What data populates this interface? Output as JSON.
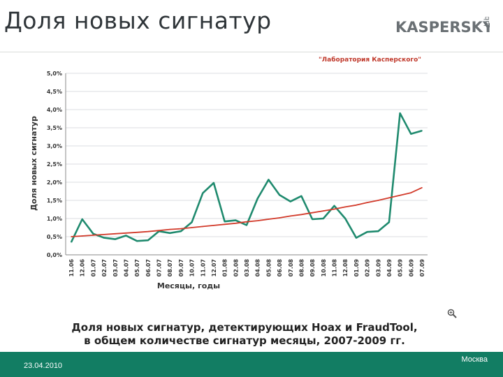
{
  "slide": {
    "title": "Доля новых сигнатур",
    "logo_text": "KASPERSKY",
    "logo_sub": "lab"
  },
  "chart_data": {
    "type": "line",
    "source_label": "\"Лаборатория Касперского\"",
    "xlabel": "Месяцы, годы",
    "ylabel": "Доля новых сигнатур",
    "ylim": [
      0,
      5
    ],
    "yticks": [
      "0,0%",
      "0,5%",
      "1,0%",
      "1,5%",
      "2,0%",
      "2,5%",
      "3,0%",
      "3,5%",
      "4,0%",
      "4,5%",
      "5,0%"
    ],
    "categories": [
      "11.06",
      "12.06",
      "01.07",
      "02.07",
      "03.07",
      "04.07",
      "05.07",
      "06.07",
      "07.07",
      "08.07",
      "09.07",
      "10.07",
      "11.07",
      "12.07",
      "01.08",
      "02.08",
      "03.08",
      "04.08",
      "05.08",
      "06.08",
      "07.08",
      "08.08",
      "09.08",
      "10.08",
      "11.08",
      "12.08",
      "01.09",
      "02.09",
      "03.09",
      "04.09",
      "05.09",
      "06.09",
      "07.09"
    ],
    "series": [
      {
        "kind": "data",
        "color": "#1f8a6e",
        "values": [
          0.35,
          0.98,
          0.58,
          0.47,
          0.43,
          0.53,
          0.38,
          0.4,
          0.65,
          0.6,
          0.65,
          0.9,
          1.7,
          1.98,
          0.92,
          0.95,
          0.82,
          1.55,
          2.07,
          1.65,
          1.47,
          1.62,
          0.98,
          1.0,
          1.35,
          1.0,
          0.47,
          0.63,
          0.65,
          0.9,
          3.9,
          3.33,
          3.42
        ]
      },
      {
        "kind": "trend",
        "color": "#d23a2a",
        "values": [
          0.5,
          0.52,
          0.54,
          0.56,
          0.58,
          0.6,
          0.62,
          0.64,
          0.67,
          0.7,
          0.72,
          0.75,
          0.78,
          0.81,
          0.84,
          0.87,
          0.91,
          0.94,
          0.98,
          1.02,
          1.07,
          1.11,
          1.16,
          1.21,
          1.26,
          1.32,
          1.37,
          1.44,
          1.5,
          1.57,
          1.64,
          1.71,
          1.85
        ]
      }
    ],
    "grid": true
  },
  "caption": {
    "line1": "Доля новых сигнатур, детектирующих Hoax и FraudTool,",
    "line2": "в общем количестве сигнатур месяцы, 2007-2009 гг."
  },
  "footer": {
    "date": "23.04.2010",
    "city": "Москва",
    "color": "#127d63"
  }
}
